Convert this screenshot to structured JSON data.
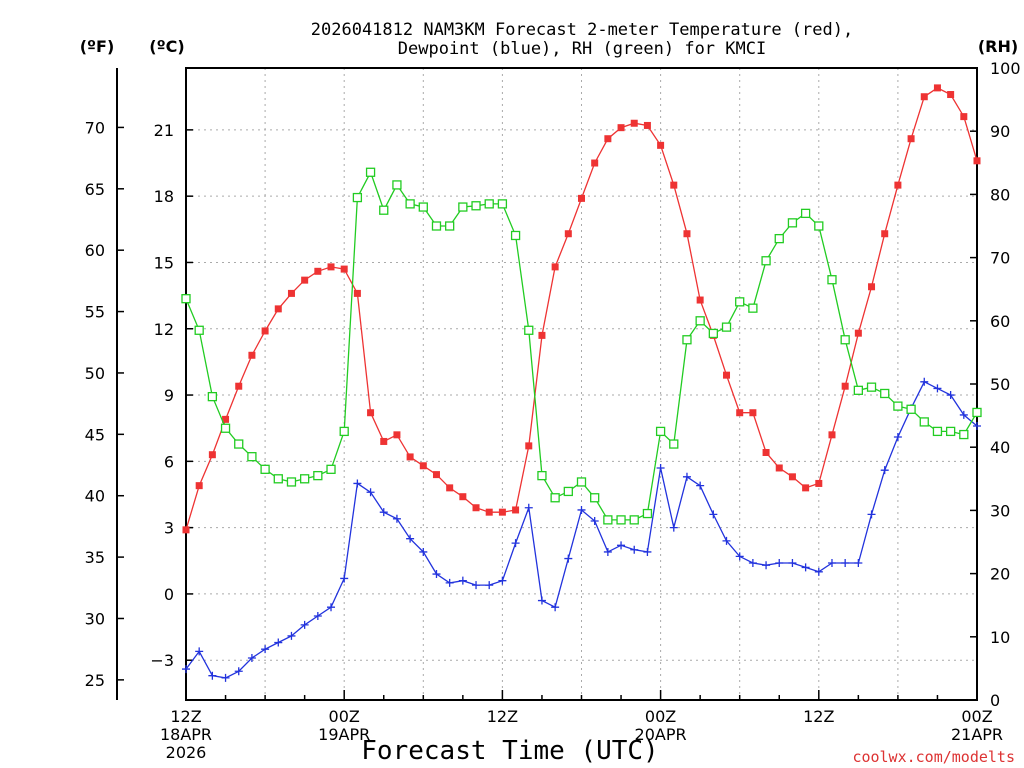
{
  "chart_data": {
    "type": "line",
    "title_line1": "2026041812 NAM3KM Forecast 2-meter Temperature (red),",
    "title_line2": "Dewpoint (blue), RH (green) for KMCI",
    "xlabel": "Forecast Time (UTC)",
    "credit": "coolwx.com/modelts",
    "units": {
      "fahrenheit": "(ºF)",
      "celsius": "(ºC)",
      "rh": "(RH)"
    },
    "x_range_hours": [
      0,
      60
    ],
    "c_range": [
      -4.8,
      23.8
    ],
    "rh_range": [
      0,
      100
    ],
    "c_ticks": [
      -3,
      0,
      3,
      6,
      9,
      12,
      15,
      18,
      21
    ],
    "f_ticks": [
      25,
      30,
      35,
      40,
      45,
      50,
      55,
      60,
      65,
      70
    ],
    "rh_ticks": [
      0,
      10,
      20,
      30,
      40,
      50,
      60,
      70,
      80,
      90,
      100
    ],
    "x_ticks": [
      {
        "hour": 0,
        "lines": [
          "12Z",
          "18APR",
          "2026"
        ]
      },
      {
        "hour": 12,
        "lines": [
          "00Z",
          "19APR"
        ]
      },
      {
        "hour": 24,
        "lines": [
          "12Z"
        ]
      },
      {
        "hour": 36,
        "lines": [
          "00Z",
          "20APR"
        ]
      },
      {
        "hour": 48,
        "lines": [
          "12Z"
        ]
      },
      {
        "hour": 60,
        "lines": [
          "00Z",
          "21APR"
        ]
      }
    ],
    "series": [
      {
        "name": "2-meter Temperature",
        "unit": "C",
        "color": "#ee3333",
        "marker": "filled-square",
        "values": [
          2.9,
          4.9,
          6.3,
          7.9,
          9.4,
          10.8,
          11.9,
          12.9,
          13.6,
          14.2,
          14.6,
          14.8,
          14.7,
          13.6,
          8.2,
          6.9,
          7.2,
          6.2,
          5.8,
          5.4,
          4.8,
          4.4,
          3.9,
          3.7,
          3.7,
          3.8,
          6.7,
          11.7,
          14.8,
          16.3,
          17.9,
          19.5,
          20.6,
          21.1,
          21.3,
          21.2,
          20.3,
          18.5,
          16.3,
          13.3,
          11.7,
          9.9,
          8.2,
          8.2,
          6.4,
          5.7,
          5.3,
          4.8,
          5.0,
          7.2,
          9.4,
          11.8,
          13.9,
          16.3,
          18.5,
          20.6,
          22.5,
          22.9,
          22.6,
          21.6,
          19.6
        ]
      },
      {
        "name": "Dewpoint",
        "unit": "C",
        "color": "#2233dd",
        "marker": "plus",
        "values": [
          -3.4,
          -2.6,
          -3.7,
          -3.8,
          -3.5,
          -2.9,
          -2.5,
          -2.2,
          -1.9,
          -1.4,
          -1.0,
          -0.6,
          0.7,
          5.0,
          4.6,
          3.7,
          3.4,
          2.5,
          1.9,
          0.9,
          0.5,
          0.6,
          0.4,
          0.4,
          0.6,
          2.3,
          3.9,
          -0.3,
          -0.6,
          1.6,
          3.8,
          3.3,
          1.9,
          2.2,
          2.0,
          1.9,
          5.7,
          3.0,
          5.3,
          4.9,
          3.6,
          2.4,
          1.7,
          1.4,
          1.3,
          1.4,
          1.4,
          1.2,
          1.0,
          1.4,
          1.4,
          1.4,
          3.6,
          5.6,
          7.1,
          8.4,
          9.6,
          9.3,
          9.0,
          8.1,
          7.6
        ]
      },
      {
        "name": "RH",
        "unit": "%",
        "color": "#22cc22",
        "marker": "open-square",
        "values": [
          63.5,
          58.5,
          48.0,
          43.0,
          40.5,
          38.5,
          36.5,
          35.0,
          34.5,
          35.0,
          35.5,
          36.5,
          42.5,
          79.5,
          83.5,
          77.5,
          81.5,
          78.5,
          78.0,
          75.0,
          75.0,
          78.0,
          78.2,
          78.5,
          78.5,
          73.5,
          58.5,
          35.5,
          32.0,
          33.0,
          34.5,
          32.0,
          28.5,
          28.5,
          28.5,
          29.5,
          42.5,
          40.5,
          57.0,
          60.0,
          58.0,
          59.0,
          63.0,
          62.0,
          69.5,
          73.0,
          75.5,
          77.0,
          75.0,
          66.5,
          57.0,
          49.0,
          49.5,
          48.5,
          46.5,
          46.0,
          44.0,
          42.5,
          42.5,
          42.0,
          45.5
        ]
      }
    ]
  }
}
